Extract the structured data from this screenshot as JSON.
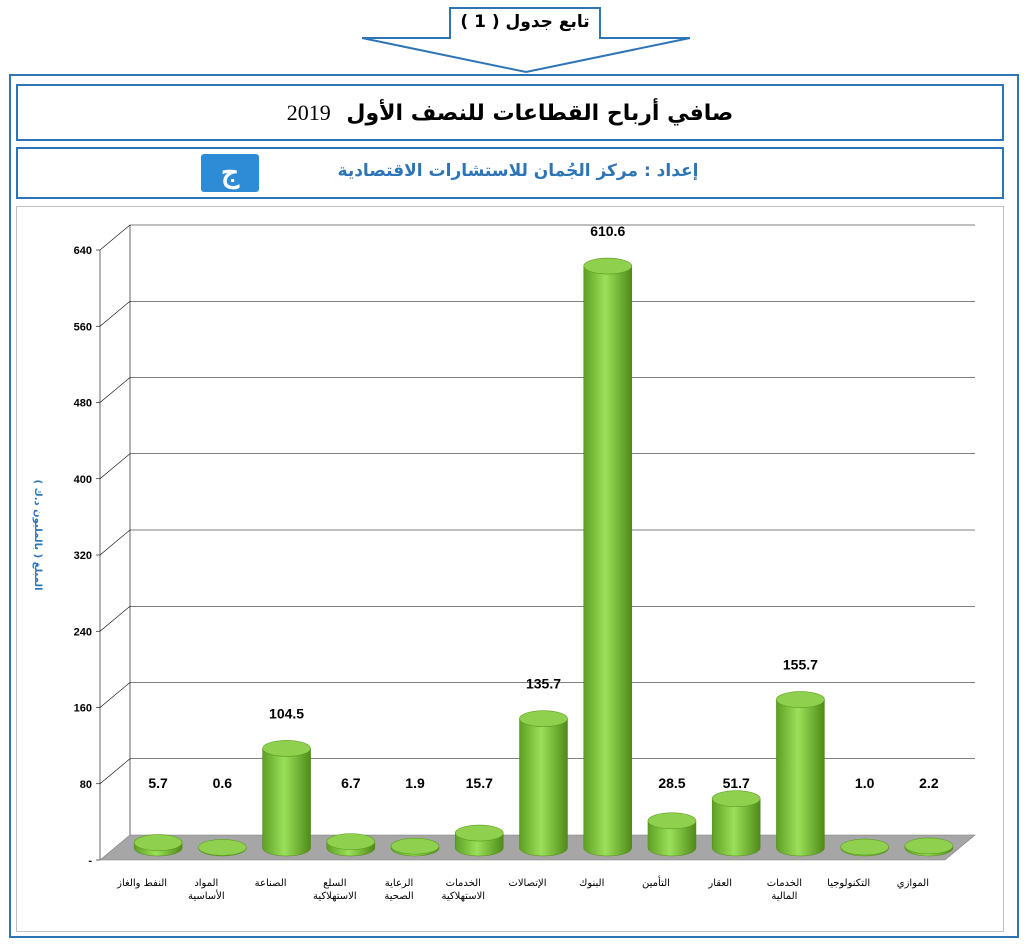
{
  "header": {
    "banner_label": "تابع جدول ( 1 )",
    "title": "صافي أرباح القطاعات للنصف الأول",
    "title_year": "2019",
    "subtitle": "إعداد : مركز الجُمان للاستشارات الاقتصادية",
    "logo_text": "ج"
  },
  "colors": {
    "frame": "#2e75b6",
    "bar_top": "#8fd14f",
    "bar_side": "#5a9e1e",
    "floor": "#a6a6a6"
  },
  "chart_data": {
    "type": "bar",
    "title": "صافي أرباح القطاعات للنصف الأول 2019",
    "ylabel": "المبلغ ( بالمليون د.ك )",
    "ylim": [
      0,
      640
    ],
    "yticks": [
      "-",
      "80",
      "160",
      "240",
      "320",
      "400",
      "480",
      "560",
      "640"
    ],
    "categories": [
      "النفط والغاز",
      "المواد الأساسية",
      "الصناعة",
      "السلع الاستهلاكية",
      "الرعاية الصحية",
      "الخدمات الاستهلاكية",
      "الإتصالات",
      "البنوك",
      "التأمين",
      "العقار",
      "الخدمات المالية",
      "التكنولوجيا",
      "الموازي"
    ],
    "category_lines": [
      [
        "النفط والغاز"
      ],
      [
        "المواد",
        "الأساسية"
      ],
      [
        "الصناعة"
      ],
      [
        "السلع",
        "الاستهلاكية"
      ],
      [
        "الرعاية",
        "الصحية"
      ],
      [
        "الخدمات",
        "الاستهلاكية"
      ],
      [
        "الإتصالات"
      ],
      [
        "البنوك"
      ],
      [
        "التأمين"
      ],
      [
        "العقار"
      ],
      [
        "الخدمات",
        "المالية"
      ],
      [
        "التكنولوجيا"
      ],
      [
        "الموازي"
      ]
    ],
    "values": [
      5.7,
      0.6,
      104.5,
      6.7,
      1.9,
      15.7,
      135.7,
      610.6,
      28.5,
      51.7,
      155.7,
      1.0,
      2.2
    ],
    "value_labels": [
      "5.7",
      "0.6",
      "104.5",
      "6.7",
      "1.9",
      "15.7",
      "135.7",
      "610.6",
      "28.5",
      "51.7",
      "155.7",
      "1.0",
      "2.2"
    ],
    "grid": true,
    "legend": "none"
  }
}
